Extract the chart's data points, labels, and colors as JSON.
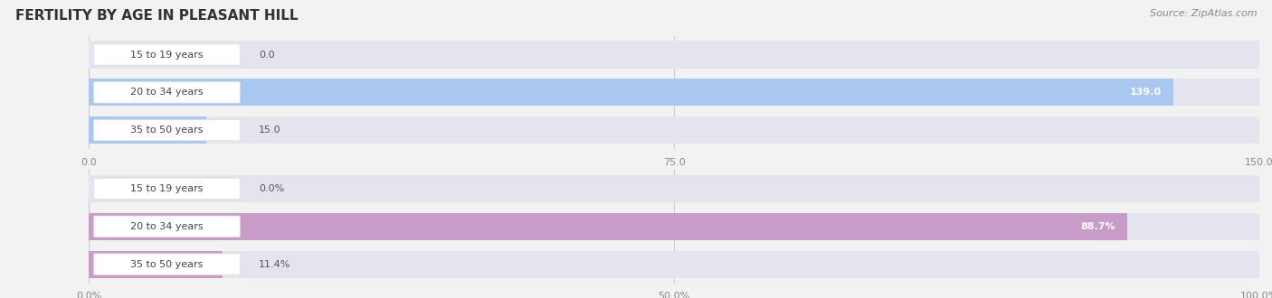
{
  "title": "FERTILITY BY AGE IN PLEASANT HILL",
  "source": "Source: ZipAtlas.com",
  "top_chart": {
    "categories": [
      "15 to 19 years",
      "20 to 34 years",
      "35 to 50 years"
    ],
    "values": [
      0.0,
      139.0,
      15.0
    ],
    "bar_color": "#a8c8f0",
    "xlim": [
      0,
      150
    ],
    "xticks": [
      0.0,
      75.0,
      150.0
    ],
    "xtick_labels": [
      "0.0",
      "75.0",
      "150.0"
    ]
  },
  "bottom_chart": {
    "categories": [
      "15 to 19 years",
      "20 to 34 years",
      "35 to 50 years"
    ],
    "values": [
      0.0,
      88.7,
      11.4
    ],
    "bar_color": "#c99bc9",
    "xlim": [
      0,
      100
    ],
    "xticks": [
      0.0,
      50.0,
      100.0
    ],
    "xtick_labels": [
      "0.0%",
      "50.0%",
      "100.0%"
    ]
  },
  "bg_color": "#f2f2f2",
  "bar_bg_color": "#e4e4ee",
  "label_pill_color": "#ffffff",
  "label_pill_border": "#dddddd",
  "value_inside_color": "#ffffff",
  "value_outside_color": "#555555",
  "category_text_color": "#444444",
  "tick_color": "#888888",
  "gridline_color": "#cccccc",
  "title_color": "#333333",
  "source_color": "#888888",
  "title_fontsize": 11,
  "source_fontsize": 8,
  "category_fontsize": 8,
  "value_fontsize": 8,
  "tick_fontsize": 8
}
